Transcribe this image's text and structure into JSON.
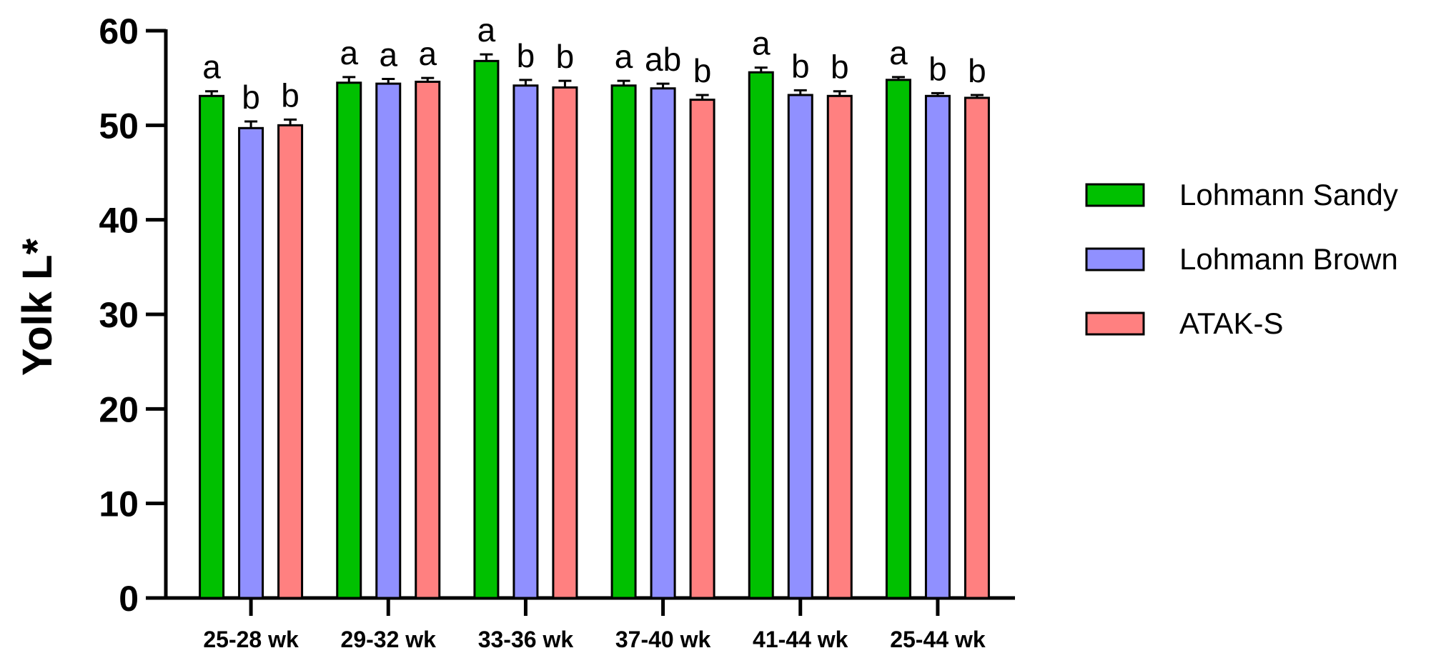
{
  "chart_data": {
    "type": "bar",
    "title": "",
    "xlabel": "",
    "ylabel": "Yolk L*",
    "ylim": [
      0,
      60
    ],
    "yticks": [
      0,
      10,
      20,
      30,
      40,
      50,
      60
    ],
    "categories": [
      "25-28 wk",
      "29-32 wk",
      "33-36 wk",
      "37-40 wk",
      "41-44 wk",
      "25-44 wk"
    ],
    "series": [
      {
        "name": "Lohmann Sandy",
        "color": "#00c000",
        "values": [
          53.1,
          54.5,
          56.8,
          54.2,
          55.6,
          54.8
        ],
        "errors": [
          0.5,
          0.6,
          0.7,
          0.5,
          0.5,
          0.3
        ],
        "letters": [
          "a",
          "a",
          "a",
          "a",
          "a",
          "a"
        ]
      },
      {
        "name": "Lohmann Brown",
        "color": "#9090ff",
        "values": [
          49.7,
          54.4,
          54.2,
          53.9,
          53.2,
          53.1
        ],
        "errors": [
          0.7,
          0.5,
          0.6,
          0.5,
          0.5,
          0.3
        ],
        "letters": [
          "b",
          "a",
          "b",
          "ab",
          "b",
          "b"
        ]
      },
      {
        "name": "ATAK-S",
        "color": "#ff8080",
        "values": [
          50.0,
          54.6,
          54.0,
          52.7,
          53.1,
          52.9
        ],
        "errors": [
          0.6,
          0.4,
          0.7,
          0.5,
          0.5,
          0.3
        ],
        "letters": [
          "b",
          "a",
          "b",
          "b",
          "b",
          "b"
        ]
      }
    ],
    "legend": {
      "position": "right"
    },
    "grid": false
  }
}
